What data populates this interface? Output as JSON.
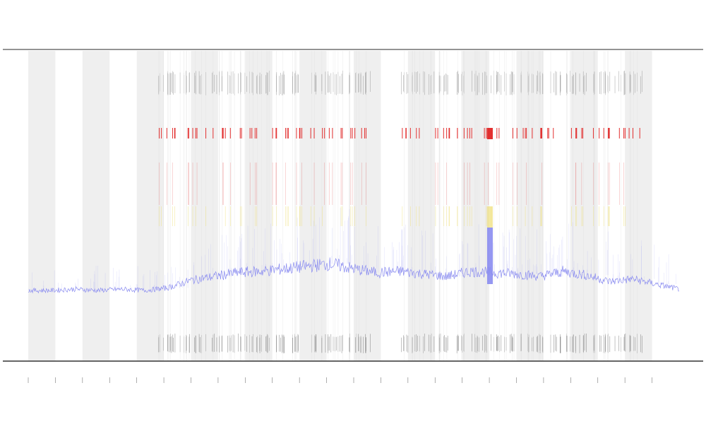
{
  "chart_data": {
    "type": "line",
    "title": "",
    "xlabel": "",
    "ylabel": "",
    "grid": false,
    "legend": "none",
    "n_days": 24,
    "shaded_days": [
      1,
      3,
      5,
      7,
      9,
      11,
      13,
      15,
      17,
      19,
      21,
      23
    ],
    "series": [
      {
        "color": "#8a8cf0",
        "values": [
          0.05,
          0.05,
          0.06,
          0.05,
          0.06,
          0.05,
          0.07,
          0.13,
          0.16,
          0.19,
          0.2,
          0.22,
          0.24,
          0.26,
          0.22,
          0.19,
          0.2,
          0.18,
          0.16,
          0.2,
          0.19,
          0.18,
          0.16,
          0.2,
          0.17,
          0.12,
          0.14,
          0.1,
          0.06
        ]
      }
    ],
    "alert_bands": [
      {
        "name": "red",
        "color": "#e23030"
      },
      {
        "name": "yellow",
        "color": "#efe07a"
      }
    ],
    "annotation_days": [
      6,
      7,
      8,
      9,
      10,
      11,
      12,
      13,
      15,
      16,
      17,
      18,
      19,
      20,
      21,
      22,
      23
    ]
  },
  "colors": {
    "shade": "#efefef",
    "axis": "#555555",
    "tick_mark": "#777777"
  }
}
